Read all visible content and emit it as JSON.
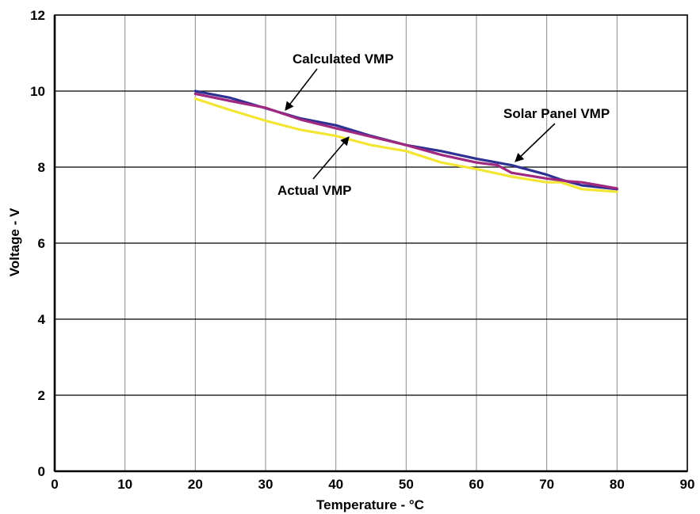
{
  "chart_data": {
    "type": "line",
    "title": "",
    "xlabel": "Temperature - °C",
    "ylabel": "Voltage - V",
    "xlim": [
      0,
      90
    ],
    "ylim": [
      0,
      12
    ],
    "x_ticks": [
      "0",
      "10",
      "20",
      "30",
      "40",
      "50",
      "60",
      "70",
      "80",
      "90"
    ],
    "y_ticks": [
      "0",
      "2",
      "4",
      "6",
      "8",
      "10",
      "12"
    ],
    "grid": true,
    "legend": "none",
    "series": [
      {
        "name": "Solar Panel VMP",
        "color": "#2e3192",
        "x": [
          20,
          25,
          30,
          35,
          40,
          45,
          50,
          55,
          60,
          65,
          70,
          72,
          75,
          80
        ],
        "y": [
          10.0,
          9.82,
          9.55,
          9.28,
          9.1,
          8.82,
          8.58,
          8.42,
          8.22,
          8.05,
          7.8,
          7.67,
          7.52,
          7.42
        ]
      },
      {
        "name": "Calculated VMP",
        "color": "#a0287f",
        "x": [
          20,
          25,
          30,
          35,
          40,
          45,
          50,
          55,
          60,
          63,
          65,
          70,
          73,
          75,
          80
        ],
        "y": [
          9.93,
          9.74,
          9.56,
          9.25,
          9.02,
          8.8,
          8.58,
          8.32,
          8.12,
          8.05,
          7.85,
          7.7,
          7.63,
          7.6,
          7.44
        ]
      },
      {
        "name": "Actual VMP",
        "color": "#f2e534",
        "x": [
          20,
          25,
          30,
          35,
          40,
          45,
          50,
          55,
          60,
          65,
          70,
          72,
          75,
          80
        ],
        "y": [
          9.8,
          9.5,
          9.22,
          8.98,
          8.82,
          8.58,
          8.42,
          8.12,
          7.95,
          7.75,
          7.6,
          7.6,
          7.42,
          7.35
        ]
      }
    ],
    "annotations": [
      {
        "text": "Calculated VMP",
        "target_series": "Calculated VMP"
      },
      {
        "text": "Solar Panel VMP",
        "target_series": "Solar Panel VMP"
      },
      {
        "text": "Actual VMP",
        "target_series": "Actual VMP"
      }
    ]
  }
}
